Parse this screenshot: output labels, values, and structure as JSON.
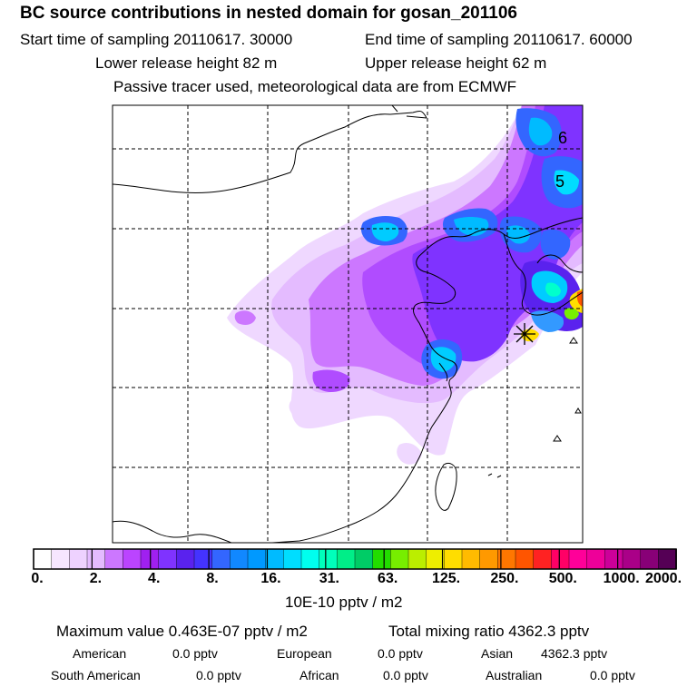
{
  "header": {
    "title": "BC  source contributions in nested domain for gosan_201106",
    "start": "Start time of sampling 20110617. 30000",
    "end": "End time of sampling 20110617. 60000",
    "lower": "Lower release height   82 m",
    "upper": "Upper release height   62 m",
    "note": "Passive tracer used, meteorological data are from ECMWF"
  },
  "map_labels": [
    "6",
    "5"
  ],
  "chart_data": {
    "type": "heatmap",
    "title": "BC  source contributions in nested domain for gosan_201106",
    "colorbar_units": "10E-10 pptv / m2",
    "colorbar_ticks": [
      "0.",
      "2.",
      "4.",
      "8.",
      "16.",
      "31.",
      "63.",
      "125.",
      "250.",
      "500.",
      "1000.",
      "2000."
    ],
    "colorbar_colors": [
      "#ffffff",
      "#f6e6ff",
      "#eed2ff",
      "#e4bbff",
      "#cc77ff",
      "#bb44ff",
      "#a020f0",
      "#7f33ff",
      "#5a22ee",
      "#4433ff",
      "#3366ff",
      "#1188ff",
      "#0099ff",
      "#00bbff",
      "#00ddff",
      "#00ffee",
      "#00ffbb",
      "#00ee88",
      "#00cc66",
      "#22dd00",
      "#77ee00",
      "#bbee00",
      "#eeee00",
      "#ffdd00",
      "#ffbb00",
      "#ff9900",
      "#ff7700",
      "#ff5500",
      "#ff2222",
      "#ff0066",
      "#ff0099",
      "#ee0099",
      "#cc0099",
      "#aa0088",
      "#880077",
      "#550055"
    ],
    "receptor": "gosan",
    "max_value": "0.463E-07 pptv / m2",
    "total_mixing_ratio": "4362.3 pptv"
  },
  "stats": {
    "max_label": "Maximum value  0.463E-07 pptv / m2",
    "total_label": "Total mixing ratio     4362.3 pptv",
    "regions": [
      {
        "name": "American",
        "value": "0.0 pptv"
      },
      {
        "name": "European",
        "value": "0.0 pptv"
      },
      {
        "name": "Asian",
        "value": "4362.3 pptv"
      },
      {
        "name": "South American",
        "value": "0.0 pptv"
      },
      {
        "name": "African",
        "value": "0.0 pptv"
      },
      {
        "name": "Australian",
        "value": "0.0 pptv"
      }
    ]
  }
}
